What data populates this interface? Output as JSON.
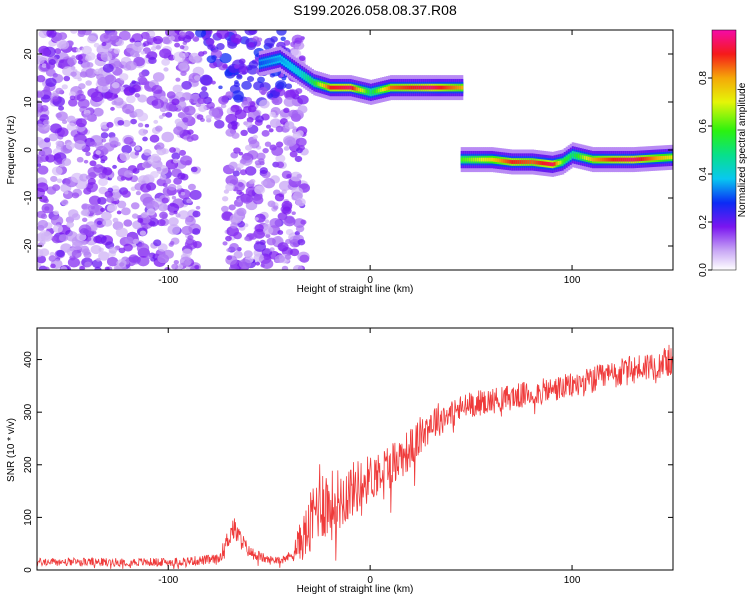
{
  "title": "S199.2026.058.08.37.R08",
  "colors": {
    "snr_line": "#ef3b3b",
    "axis": "#000000"
  },
  "chart_data": [
    {
      "type": "heatmap",
      "xlabel": "Height of straight line (km)",
      "ylabel": "Frequency (Hz)",
      "xlim": [
        -165,
        150
      ],
      "ylim": [
        -25,
        25
      ],
      "x_ticks": [
        -100,
        0,
        100
      ],
      "y_ticks": [
        -20,
        -10,
        0,
        10,
        20
      ],
      "colorbar": {
        "label": "Normalized spectral amplitude",
        "range": [
          0,
          1
        ],
        "ticks": [
          "0.0",
          "0.2",
          "0.4",
          "0.6",
          "0.8"
        ],
        "tick_values": [
          0.0,
          0.2,
          0.4,
          0.6,
          0.8
        ]
      },
      "features": {
        "noise_region_x": [
          -165,
          -40
        ],
        "signal_band_high": {
          "x": [
            -55,
            -45,
            -35,
            -28,
            -20,
            -10,
            0,
            10,
            20,
            30,
            45
          ],
          "freq_hz": [
            18,
            19,
            16,
            14,
            13,
            13,
            12,
            13,
            13,
            13,
            13
          ],
          "amplitude": [
            0.3,
            0.35,
            0.4,
            0.55,
            0.9,
            0.95,
            0.5,
            0.85,
            0.9,
            0.95,
            0.8
          ]
        },
        "signal_band_low": {
          "x": [
            45,
            60,
            70,
            80,
            90,
            95,
            100,
            110,
            120,
            130,
            150
          ],
          "freq_hz": [
            -2,
            -2,
            -2.5,
            -2.5,
            -3,
            -2.5,
            -1,
            -2,
            -2,
            -2,
            -1.5
          ],
          "amplitude": [
            0.6,
            0.75,
            0.9,
            0.85,
            0.95,
            0.6,
            0.5,
            0.8,
            0.9,
            0.95,
            0.7
          ]
        }
      }
    },
    {
      "type": "line",
      "xlabel": "Height of straight line (km)",
      "ylabel": "SNR (10 * v/v)",
      "xlim": [
        -165,
        150
      ],
      "ylim": [
        0,
        460
      ],
      "x_ticks": [
        -100,
        0,
        100
      ],
      "y_ticks": [
        0,
        100,
        200,
        300,
        400
      ],
      "series": [
        {
          "color": "#ef3b3b",
          "trend_x": [
            -165,
            -100,
            -75,
            -68,
            -60,
            -50,
            -40,
            -30,
            -25,
            -20,
            -10,
            0,
            10,
            20,
            30,
            50,
            80,
            100,
            120,
            150
          ],
          "trend_y": [
            15,
            15,
            20,
            80,
            35,
            18,
            25,
            80,
            140,
            120,
            150,
            175,
            200,
            230,
            280,
            315,
            335,
            350,
            370,
            400
          ],
          "noise_amplitude": [
            8,
            8,
            10,
            25,
            12,
            8,
            10,
            60,
            80,
            70,
            55,
            45,
            45,
            40,
            35,
            25,
            25,
            25,
            28,
            30
          ]
        }
      ]
    }
  ]
}
